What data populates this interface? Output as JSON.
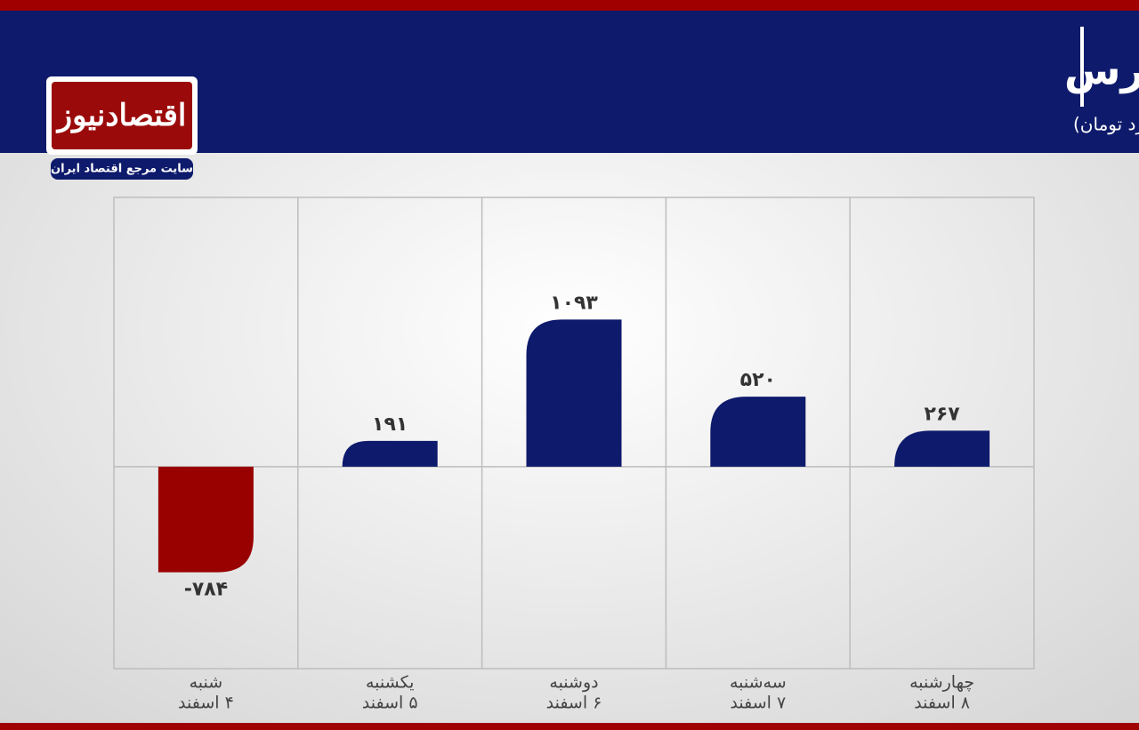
{
  "chart_data": {
    "type": "bar",
    "title": "روند ورود و خروج پول حقیقی در بورس",
    "subtitle": "(واحد:میلیارد تومان)",
    "brand": "اقتصادنیوز",
    "brand_tagline": "سایت مرجع اقتصاد ایران",
    "categories": [
      [
        "شنبه",
        "۴ اسفند"
      ],
      [
        "یکشنبه",
        "۵ اسفند"
      ],
      [
        "دوشنبه",
        "۶ اسفند"
      ],
      [
        "سه‌شنبه",
        "۷ اسفند"
      ],
      [
        "چهارشنبه",
        "۸ اسفند"
      ]
    ],
    "values": [
      -784,
      191,
      1093,
      520,
      267
    ],
    "value_labels": [
      "-۷۸۴",
      "۱۹۱",
      "۱۰۹۳",
      "۵۲۰",
      "۲۶۷"
    ],
    "positive_color": "#0e1a6b",
    "negative_color": "#990000",
    "ylim": [
      -1500,
      2000
    ]
  }
}
